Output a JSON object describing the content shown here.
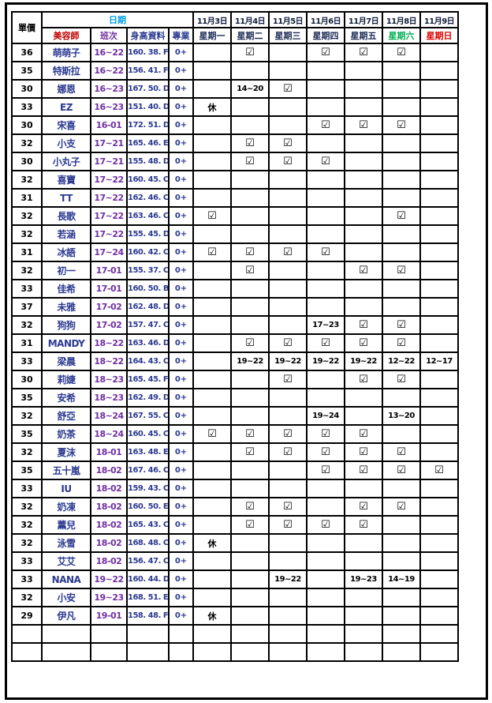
{
  "colors": {
    "navy": "#2B3990",
    "purple": "#7030A0",
    "date_blue": "#009FE3",
    "beautician_red": "#C00000",
    "weekday_navy": "#1B2A55",
    "date_dark": "#101C3A",
    "sat_green": "#00B050",
    "sun_red": "#E10000"
  },
  "symbols": {
    "check": "☑"
  },
  "header": {
    "unit_price": "單價",
    "date_label": "日期",
    "sub_labels": [
      {
        "label": "美容師",
        "color": "#C00000"
      },
      {
        "label": "班次",
        "color": "#7030A0"
      },
      {
        "label": "身高資料",
        "color": "#2B3990"
      },
      {
        "label": "專業",
        "color": "#2B3990"
      }
    ],
    "dates": [
      "11月3日",
      "11月4日",
      "11月5日",
      "11月6日",
      "11月7日",
      "11月8日",
      "11月9日"
    ],
    "weekdays": [
      {
        "label": "星期一",
        "color": "#1B2A55"
      },
      {
        "label": "星期二",
        "color": "#1B2A55"
      },
      {
        "label": "星期三",
        "color": "#1B2A55"
      },
      {
        "label": "星期四",
        "color": "#1B2A55"
      },
      {
        "label": "星期五",
        "color": "#1B2A55"
      },
      {
        "label": "星期六",
        "color": "#00B050"
      },
      {
        "label": "星期日",
        "color": "#E10000"
      }
    ]
  },
  "rows": [
    {
      "price": "36",
      "name": "萌萌子",
      "shift": "16~22",
      "info": "160. 38. F",
      "pro": "0+",
      "days": [
        "",
        "check",
        "",
        "check",
        "check",
        "check",
        ""
      ]
    },
    {
      "price": "35",
      "name": "特斯拉",
      "shift": "16~22",
      "info": "156. 41. F",
      "pro": "0+",
      "days": [
        "",
        "",
        "",
        "",
        "",
        "",
        ""
      ]
    },
    {
      "price": "30",
      "name": "娜恩",
      "shift": "16~23",
      "info": "167. 50. D",
      "pro": "0+",
      "days": [
        "",
        "14~20",
        "check",
        "",
        "",
        "",
        ""
      ]
    },
    {
      "price": "33",
      "name": "EZ",
      "shift": "16~23",
      "info": "151. 40. D",
      "pro": "0+",
      "days": [
        "休",
        "",
        "",
        "",
        "",
        "",
        ""
      ]
    },
    {
      "price": "30",
      "name": "宋喜",
      "shift": "16-01",
      "info": "172. 51. D",
      "pro": "0+",
      "days": [
        "",
        "",
        "",
        "check",
        "check",
        "check",
        ""
      ]
    },
    {
      "price": "32",
      "name": "小支",
      "shift": "17~21",
      "info": "165. 46. E",
      "pro": "0+",
      "days": [
        "",
        "check",
        "check",
        "",
        "",
        "",
        ""
      ]
    },
    {
      "price": "30",
      "name": "小丸子",
      "shift": "17~21",
      "info": "155. 48. D",
      "pro": "0+",
      "days": [
        "",
        "check",
        "check",
        "check",
        "",
        "",
        ""
      ]
    },
    {
      "price": "32",
      "name": "喜寶",
      "shift": "17~22",
      "info": "160. 45. C",
      "pro": "0+",
      "days": [
        "",
        "",
        "",
        "",
        "",
        "",
        ""
      ]
    },
    {
      "price": "31",
      "name": "TT",
      "shift": "17~22",
      "info": "162. 46. C",
      "pro": "0+",
      "days": [
        "",
        "",
        "",
        "",
        "",
        "",
        ""
      ]
    },
    {
      "price": "32",
      "name": "長歌",
      "shift": "17~22",
      "info": "163. 46. C",
      "pro": "0+",
      "days": [
        "check",
        "",
        "",
        "",
        "",
        "check",
        ""
      ]
    },
    {
      "price": "32",
      "name": "若涵",
      "shift": "17~22",
      "info": "155. 45. D",
      "pro": "0+",
      "days": [
        "",
        "",
        "",
        "",
        "",
        "",
        ""
      ]
    },
    {
      "price": "31",
      "name": "冰語",
      "shift": "17~24",
      "info": "160. 42. C",
      "pro": "0+",
      "days": [
        "check",
        "check",
        "check",
        "check",
        "",
        "",
        ""
      ]
    },
    {
      "price": "32",
      "name": "初一",
      "shift": "17-01",
      "info": "155. 37. C",
      "pro": "0+",
      "days": [
        "",
        "check",
        "",
        "",
        "check",
        "check",
        ""
      ]
    },
    {
      "price": "33",
      "name": "佳希",
      "shift": "17-01",
      "info": "160. 50. B",
      "pro": "0+",
      "days": [
        "",
        "",
        "",
        "",
        "",
        "",
        ""
      ]
    },
    {
      "price": "37",
      "name": "未雅",
      "shift": "17-02",
      "info": "162. 48. D",
      "pro": "0+",
      "days": [
        "",
        "",
        "",
        "",
        "",
        "",
        ""
      ]
    },
    {
      "price": "32",
      "name": "狗狗",
      "shift": "17-02",
      "info": "157. 47. C",
      "pro": "0+",
      "days": [
        "",
        "",
        "",
        "17~23",
        "check",
        "check",
        ""
      ]
    },
    {
      "price": "31",
      "name": "MANDY",
      "shift": "18~22",
      "info": "163. 46. D",
      "pro": "0+",
      "days": [
        "",
        "check",
        "check",
        "check",
        "check",
        "check",
        ""
      ]
    },
    {
      "price": "33",
      "name": "梁晨",
      "shift": "18~22",
      "info": "164. 43. C",
      "pro": "0+",
      "days": [
        "",
        "19~22",
        "19~22",
        "19~22",
        "19~22",
        "12~22",
        "12~17"
      ]
    },
    {
      "price": "30",
      "name": "莉婕",
      "shift": "18~23",
      "info": "165. 45. F",
      "pro": "0+",
      "days": [
        "",
        "",
        "check",
        "",
        "check",
        "check",
        ""
      ]
    },
    {
      "price": "35",
      "name": "安希",
      "shift": "18~23",
      "info": "162. 49. D",
      "pro": "0+",
      "days": [
        "",
        "",
        "",
        "",
        "",
        "",
        ""
      ]
    },
    {
      "price": "32",
      "name": "舒亞",
      "shift": "18~24",
      "info": "167. 55. C",
      "pro": "0+",
      "days": [
        "",
        "",
        "",
        "19~24",
        "",
        "13~20",
        ""
      ]
    },
    {
      "price": "35",
      "name": "奶茶",
      "shift": "18~24",
      "info": "160. 45. C",
      "pro": "0+",
      "days": [
        "check",
        "check",
        "check",
        "check",
        "check",
        "",
        ""
      ]
    },
    {
      "price": "32",
      "name": "夏沫",
      "shift": "18-01",
      "info": "163. 48. E",
      "pro": "0+",
      "days": [
        "",
        "check",
        "check",
        "check",
        "check",
        "check",
        ""
      ]
    },
    {
      "price": "35",
      "name": "五十嵐",
      "shift": "18-02",
      "info": "167. 46. C",
      "pro": "0+",
      "days": [
        "",
        "",
        "",
        "check",
        "check",
        "check",
        "check"
      ]
    },
    {
      "price": "33",
      "name": "IU",
      "shift": "18-02",
      "info": "159. 43. C",
      "pro": "0+",
      "days": [
        "",
        "",
        "",
        "",
        "",
        "",
        ""
      ]
    },
    {
      "price": "32",
      "name": "奶凍",
      "shift": "18-02",
      "info": "160. 50. E",
      "pro": "0+",
      "days": [
        "",
        "check",
        "check",
        "",
        "check",
        "check",
        ""
      ]
    },
    {
      "price": "32",
      "name": "薰兒",
      "shift": "18-02",
      "info": "165. 43. C",
      "pro": "0+",
      "days": [
        "",
        "check",
        "check",
        "check",
        "check",
        "",
        ""
      ]
    },
    {
      "price": "32",
      "name": "泳雪",
      "shift": "18-02",
      "info": "168. 48. C",
      "pro": "0+",
      "days": [
        "休",
        "",
        "",
        "",
        "",
        "",
        ""
      ]
    },
    {
      "price": "33",
      "name": "艾艾",
      "shift": "18-02",
      "info": "156. 47. C",
      "pro": "0+",
      "days": [
        "",
        "",
        "",
        "",
        "",
        "",
        ""
      ]
    },
    {
      "price": "33",
      "name": "NANA",
      "shift": "19~22",
      "info": "160. 44. D",
      "pro": "0+",
      "days": [
        "",
        "",
        "19~22",
        "",
        "19~23",
        "14~19",
        ""
      ]
    },
    {
      "price": "32",
      "name": "小安",
      "shift": "19~23",
      "info": "168. 51. E",
      "pro": "0+",
      "days": [
        "",
        "",
        "",
        "",
        "",
        "",
        ""
      ]
    },
    {
      "price": "29",
      "name": "伊凡",
      "shift": "19-01",
      "info": "158. 48. F",
      "pro": "0+",
      "days": [
        "休",
        "",
        "",
        "",
        "",
        "",
        ""
      ]
    },
    {
      "price": "",
      "name": "",
      "shift": "",
      "info": "",
      "pro": "",
      "days": [
        "",
        "",
        "",
        "",
        "",
        "",
        ""
      ]
    },
    {
      "price": "",
      "name": "",
      "shift": "",
      "info": "",
      "pro": "",
      "days": [
        "",
        "",
        "",
        "",
        "",
        "",
        ""
      ]
    }
  ]
}
